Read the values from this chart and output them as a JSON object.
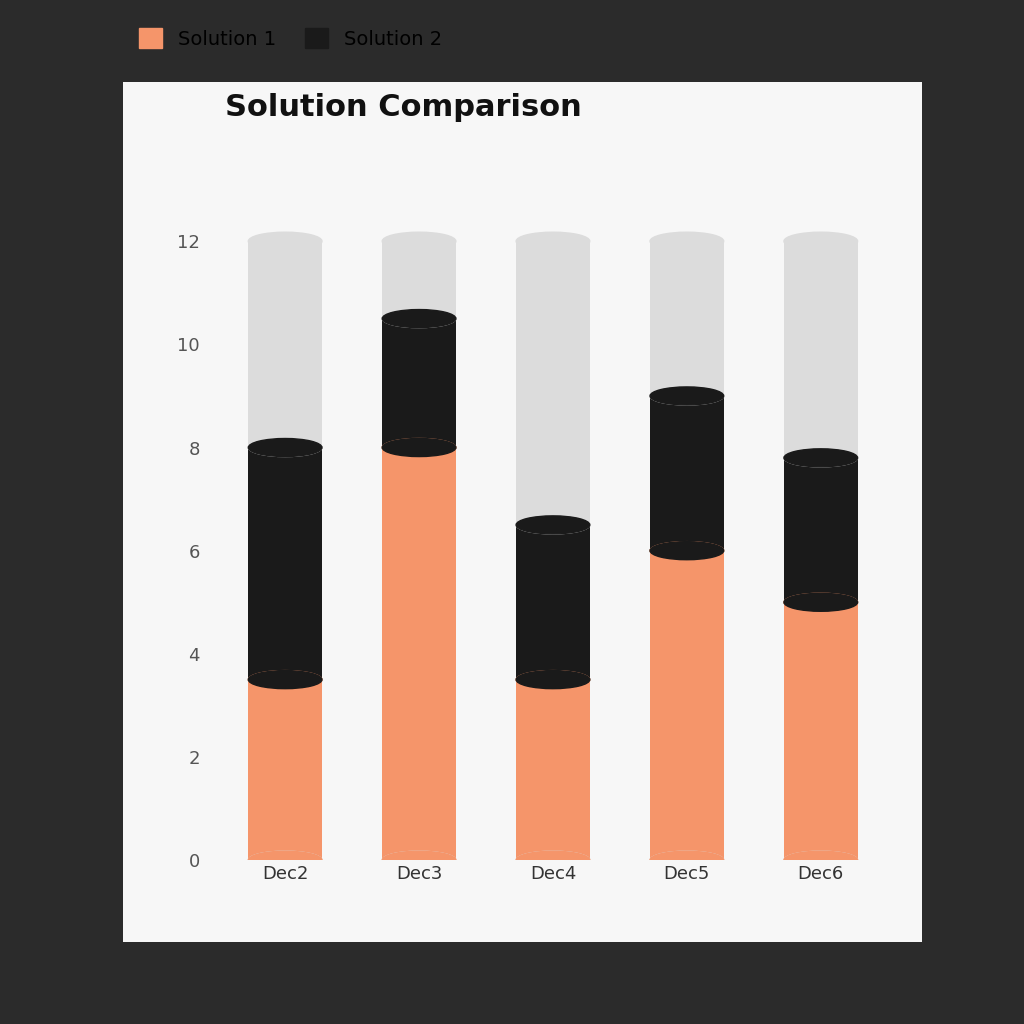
{
  "title": "Solution Comparison",
  "categories": [
    "Dec2",
    "Dec3",
    "Dec4",
    "Dec5",
    "Dec6"
  ],
  "solution1": [
    3.5,
    8.0,
    3.5,
    6.0,
    5.0
  ],
  "solution2": [
    4.5,
    2.5,
    3.0,
    3.0,
    2.8
  ],
  "total_bar": [
    12,
    12,
    12,
    12,
    12
  ],
  "color_solution1": "#F5956A",
  "color_solution2": "#1A1A1A",
  "color_background_bar": "#DCDCDC",
  "ylim": [
    0,
    13.5
  ],
  "yticks": [
    0,
    2,
    4,
    6,
    8,
    10,
    12
  ],
  "bar_width": 0.55,
  "chart_bg": "#F7F7F7",
  "outer_bg": "#2B2B2B",
  "title_fontsize": 22,
  "label_fontsize": 14,
  "tick_fontsize": 13,
  "legend_fontsize": 14
}
